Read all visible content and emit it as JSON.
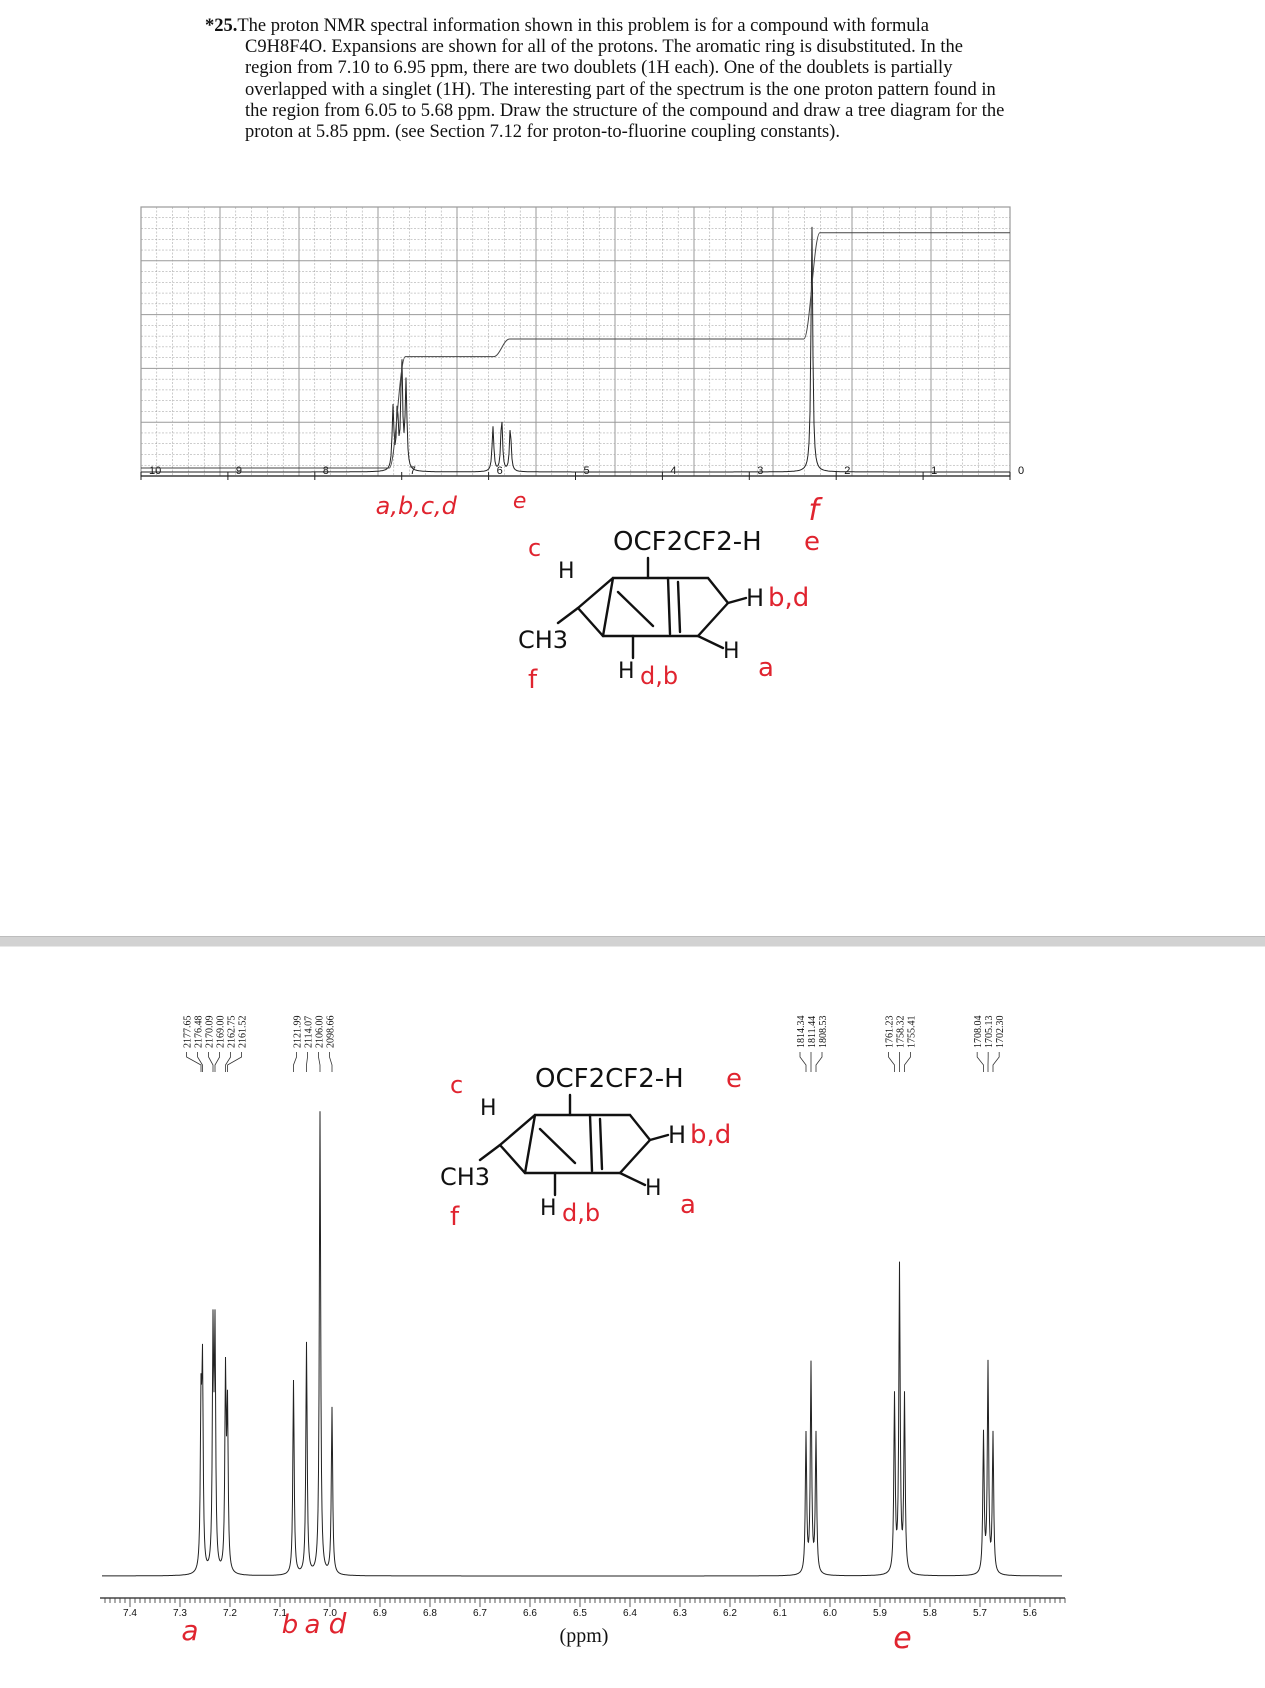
{
  "problem": {
    "number": "*25.",
    "text": "The proton NMR spectral information shown in this problem is for a compound with formula C9H8F4O. Expansions are shown for all of the protons. The aromatic ring is disubstituted. In the region from 7.10 to 6.95 ppm, there are two doublets (1H each). One of the doublets is partially overlapped with a singlet (1H). The interesting part of the spectrum is the one proton pattern found in the region from 6.05 to 5.68 ppm. Draw the structure of the compound and draw a tree diagram for the proton at 5.85 ppm. (see Section 7.12 for proton-to-fluorine coupling constants)."
  },
  "colors": {
    "annotation": "#e0242f",
    "grid": "#9a9a9a",
    "trace": "#222222"
  },
  "chart_data": [
    {
      "type": "line",
      "title": "",
      "xlabel": "",
      "ylabel": "",
      "x_reversed": true,
      "xlim": [
        10,
        0
      ],
      "x_tick_labels": [
        "10",
        "9",
        "8",
        "7",
        "6",
        "5",
        "4",
        "3",
        "2",
        "1",
        "0"
      ],
      "grid": true,
      "series": [
        {
          "values_ppm": [
            7.1,
            7.05,
            7.0,
            6.95
          ],
          "intensities": [
            0.25,
            0.25,
            0.45,
            0.35
          ]
        },
        {
          "values_ppm": [
            5.95,
            5.85,
            5.75
          ],
          "intensities": [
            0.18,
            0.22,
            0.18
          ]
        },
        {
          "values_ppm": [
            2.28
          ],
          "intensities": [
            1.0
          ]
        }
      ],
      "integration_steps": [
        {
          "ppm": 7.05,
          "height": 0.44
        },
        {
          "ppm": 5.85,
          "height": 0.51
        },
        {
          "ppm": 2.28,
          "height": 0.93
        }
      ],
      "annotations": [
        "a,b,c,d",
        "e",
        "f"
      ]
    },
    {
      "type": "line",
      "title": "",
      "xlabel": "(ppm)",
      "ylabel": "",
      "x_reversed": true,
      "xlim": [
        7.4,
        5.55
      ],
      "x_tick_labels": [
        "7.4",
        "7.3",
        "7.2",
        "7.1",
        "7.0",
        "6.9",
        "6.8",
        "6.7",
        "6.6",
        "6.5",
        "6.4",
        "6.3",
        "6.2",
        "6.1",
        "6.0",
        "5.9",
        "5.8",
        "5.7",
        "5.6"
      ],
      "peak_groups": [
        {
          "labels_hz": [
            "2177.65",
            "2176.48",
            "2170.09",
            "2169.00",
            "2162.75",
            "2161.52"
          ],
          "ppm": [
            7.258,
            7.255,
            7.234,
            7.23,
            7.209,
            7.205
          ],
          "heights": [
            0.34,
            0.42,
            0.5,
            0.5,
            0.42,
            0.34
          ]
        },
        {
          "labels_hz": [
            "2121.99",
            "2114.07",
            "2106.00",
            "2098.66"
          ],
          "ppm": [
            7.073,
            7.047,
            7.02,
            6.996
          ],
          "heights": [
            0.42,
            0.5,
            1.0,
            0.36
          ]
        },
        {
          "labels_hz": [
            "1814.34",
            "1811.44",
            "1808.53"
          ],
          "ppm": [
            6.048,
            6.038,
            6.028
          ],
          "heights": [
            0.3,
            0.45,
            0.3
          ]
        },
        {
          "labels_hz": [
            "1761.23",
            "1758.32",
            "1755.41"
          ],
          "ppm": [
            5.871,
            5.861,
            5.851
          ],
          "heights": [
            0.38,
            0.66,
            0.38
          ]
        },
        {
          "labels_hz": [
            "1708.04",
            "1705.13",
            "1702.30"
          ],
          "ppm": [
            5.693,
            5.684,
            5.674
          ],
          "heights": [
            0.3,
            0.45,
            0.3
          ]
        }
      ],
      "annotations": [
        "a",
        "b",
        "a",
        "d",
        "e"
      ]
    }
  ],
  "structure_sketch": {
    "substituent": "OCF2CF2-H",
    "proton_e_label": "e",
    "top_labels": [
      "c",
      "H"
    ],
    "right_labels": [
      "H",
      "b,d"
    ],
    "methyl": "CH3",
    "methyl_label": "f",
    "bottom_labels": [
      "H",
      "d,b"
    ],
    "lower_right_labels": [
      "H",
      "a"
    ]
  }
}
